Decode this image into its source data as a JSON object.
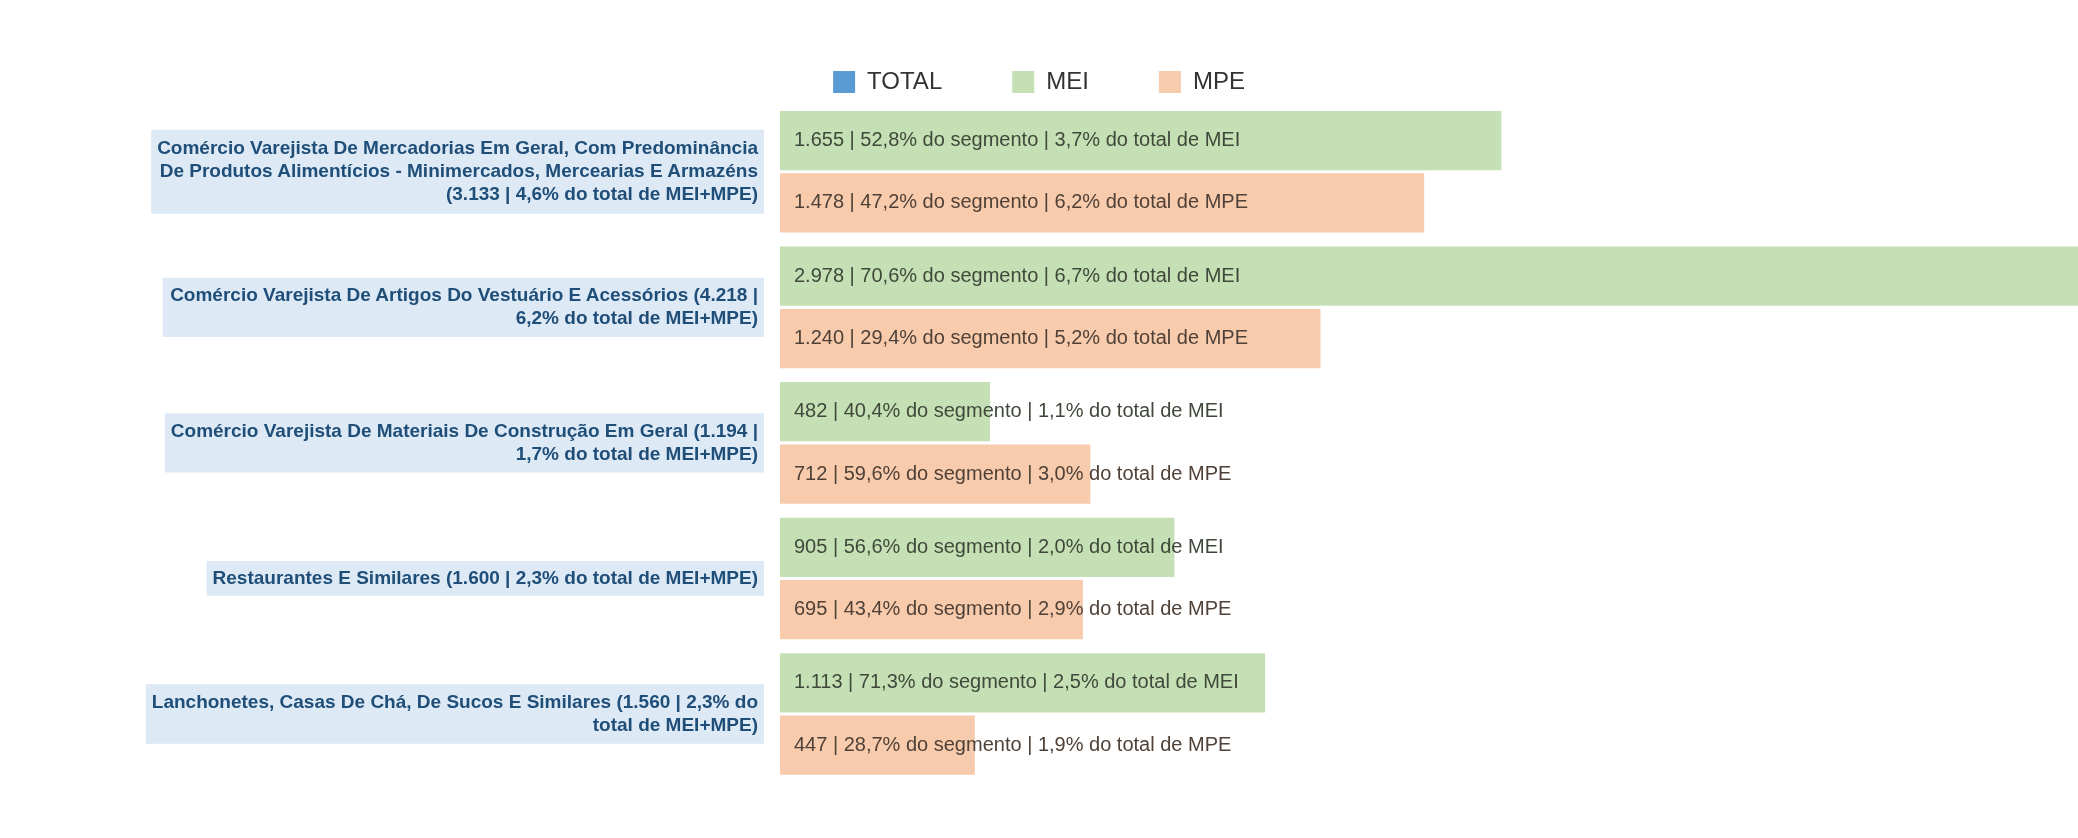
{
  "chart_data": {
    "type": "bar",
    "orientation": "horizontal",
    "legend": "top",
    "tick_labels": "y",
    "categories": [
      "Comércio Varejista De Mercadorias Em Geral, Com Predominância De Produtos Alimentícios - Minimercados, Mercearias E Armazéns (3.133 | 4,6% do total de MEI+MPE)",
      "Comércio Varejista De Artigos Do Vestuário E Acessórios (4.218 | 6,2% do total de MEI+MPE)",
      "Comércio Varejista De Materiais De Construção Em Geral (1.194 | 1,7% do total de MEI+MPE)",
      "Restaurantes E Similares (1.600 | 2,3% do total de MEI+MPE)",
      "Lanchonetes, Casas De Chá, De Sucos E Similares (1.560 | 2,3% do total de MEI+MPE)"
    ],
    "series": [
      {
        "name": "TOTAL",
        "color": "#5b9bd5",
        "values": [
          null,
          null,
          null,
          null,
          null
        ]
      },
      {
        "name": "MEI",
        "color": "#c5e0b4",
        "values": [
          1655,
          2978,
          482,
          905,
          1113
        ],
        "value_labels": [
          "1.655 | 52,8% do segmento | 3,7% do total de MEI",
          "2.978 | 70,6% do segmento | 6,7% do total de MEI",
          "482 | 40,4% do segmento | 1,1% do total de MEI",
          "905 | 56,6% do segmento | 2,0% do total de MEI",
          "1.113 | 71,3% do segmento | 2,5% do total de MEI"
        ]
      },
      {
        "name": "MPE",
        "color": "#f8cbad",
        "values": [
          1478,
          1240,
          712,
          695,
          447
        ],
        "value_labels": [
          "1.478 | 47,2% do segmento | 6,2% do total de MPE",
          "1.240 | 29,4% do segmento | 5,2% do total de MPE",
          "712 | 59,6% do segmento | 3,0% do total de MPE",
          "695 | 43,4% do segmento | 2,9% do total de MPE",
          "447 | 28,7% do segmento | 1,9% do total de MPE"
        ]
      }
    ]
  }
}
